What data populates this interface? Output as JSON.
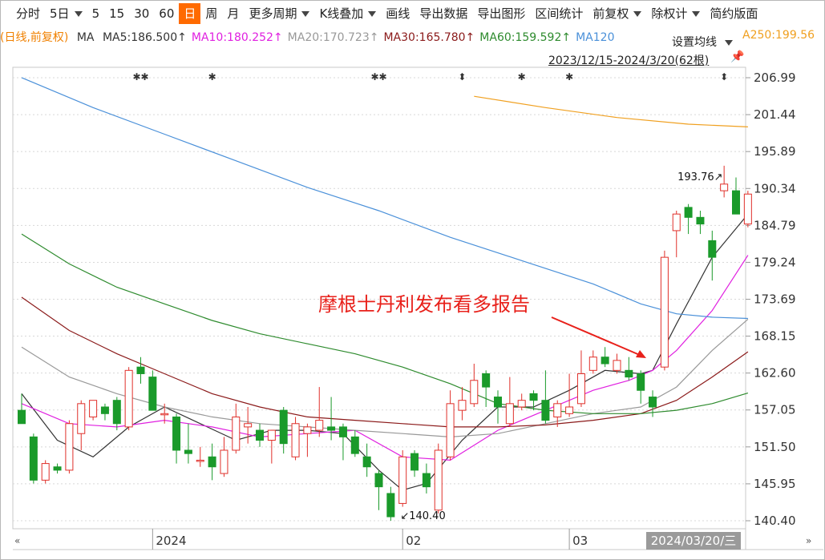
{
  "toolbar": {
    "items": [
      "分时",
      "5日",
      "5",
      "15",
      "30",
      "60",
      "日",
      "周",
      "月",
      "更多周期",
      "K线叠加",
      "画线",
      "导出数据",
      "导出图形",
      "区间统计",
      "前复权",
      "除权计",
      "简约版面"
    ],
    "active_item": "日"
  },
  "ma_line": {
    "prefix": "(日线,前复权)",
    "ma_label": "MA",
    "entries": [
      {
        "text": "MA5:186.500↑",
        "color": "#333333"
      },
      {
        "text": "MA10:180.252↑",
        "color": "#e020e0"
      },
      {
        "text": "MA20:170.723↑",
        "color": "#999999"
      },
      {
        "text": "MA30:165.780↑",
        "color": "#8b1a1a"
      },
      {
        "text": "MA60:159.592↑",
        "color": "#2e8b2e"
      },
      {
        "text": "MA120",
        "color": "#4a90d9"
      },
      {
        "text": "A250:199.56",
        "color": "#f0a020"
      }
    ],
    "prefix_color": "#f08000",
    "set_ma_label": "设置均线"
  },
  "date_range": "2023/12/15-2024/3/20(62根)",
  "crosshair_date": "2024/03/20/三",
  "scroll_left_icon": "double-left-arrow-icon",
  "scroll_right_icon": "double-right-arrow-icon",
  "colors": {
    "up": "#e0302a",
    "down": "#1a9a2a",
    "annotation": "#e8201a"
  },
  "chart_data": {
    "type": "candlestick",
    "ylim": [
      138.5,
      210.0
    ],
    "y_ticks": [
      206.99,
      201.44,
      195.89,
      190.34,
      184.79,
      179.24,
      173.69,
      168.15,
      162.6,
      157.05,
      151.5,
      145.95,
      140.4
    ],
    "x_tick_labels": [
      {
        "index": 11,
        "label": "2024"
      },
      {
        "index": 32,
        "label": "02"
      },
      {
        "index": 46,
        "label": "03"
      }
    ],
    "candles": [
      {
        "o": 157.0,
        "h": 159.5,
        "l": 155.0,
        "c": 155.0
      },
      {
        "o": 153.0,
        "h": 153.5,
        "l": 146.0,
        "c": 146.5
      },
      {
        "o": 146.5,
        "h": 149.5,
        "l": 146.0,
        "c": 149.0
      },
      {
        "o": 148.5,
        "h": 149.0,
        "l": 147.5,
        "c": 148.0
      },
      {
        "o": 148.0,
        "h": 155.5,
        "l": 147.5,
        "c": 155.0
      },
      {
        "o": 153.5,
        "h": 158.5,
        "l": 151.0,
        "c": 158.0
      },
      {
        "o": 156.0,
        "h": 158.5,
        "l": 155.5,
        "c": 158.5
      },
      {
        "o": 157.5,
        "h": 158.0,
        "l": 155.5,
        "c": 156.5
      },
      {
        "o": 158.5,
        "h": 159.0,
        "l": 154.0,
        "c": 155.0
      },
      {
        "o": 154.5,
        "h": 163.5,
        "l": 154.0,
        "c": 163.0
      },
      {
        "o": 163.5,
        "h": 165.0,
        "l": 161.0,
        "c": 162.5
      },
      {
        "o": 162.0,
        "h": 163.0,
        "l": 157.0,
        "c": 157.0
      },
      {
        "o": 156.5,
        "h": 158.0,
        "l": 155.0,
        "c": 156.5
      },
      {
        "o": 156.0,
        "h": 156.5,
        "l": 149.0,
        "c": 151.0
      },
      {
        "o": 151.0,
        "h": 155.0,
        "l": 149.0,
        "c": 150.5
      },
      {
        "o": 149.5,
        "h": 151.5,
        "l": 148.5,
        "c": 149.5
      },
      {
        "o": 150.0,
        "h": 152.0,
        "l": 146.5,
        "c": 148.5
      },
      {
        "o": 147.5,
        "h": 153.0,
        "l": 147.0,
        "c": 151.0
      },
      {
        "o": 151.0,
        "h": 158.0,
        "l": 150.5,
        "c": 156.0
      },
      {
        "o": 154.5,
        "h": 157.5,
        "l": 152.0,
        "c": 155.0
      },
      {
        "o": 154.0,
        "h": 155.0,
        "l": 151.5,
        "c": 152.5
      },
      {
        "o": 152.5,
        "h": 154.0,
        "l": 149.0,
        "c": 154.0
      },
      {
        "o": 157.0,
        "h": 157.5,
        "l": 150.5,
        "c": 152.0
      },
      {
        "o": 150.0,
        "h": 156.0,
        "l": 149.5,
        "c": 155.0
      },
      {
        "o": 153.5,
        "h": 155.0,
        "l": 150.0,
        "c": 154.5
      },
      {
        "o": 154.0,
        "h": 160.5,
        "l": 153.0,
        "c": 155.5
      },
      {
        "o": 154.5,
        "h": 159.0,
        "l": 152.5,
        "c": 154.0
      },
      {
        "o": 154.5,
        "h": 155.0,
        "l": 149.5,
        "c": 153.0
      },
      {
        "o": 153.0,
        "h": 154.0,
        "l": 150.0,
        "c": 150.5
      },
      {
        "o": 150.0,
        "h": 152.0,
        "l": 147.0,
        "c": 148.5
      },
      {
        "o": 147.5,
        "h": 148.0,
        "l": 142.0,
        "c": 145.5
      },
      {
        "o": 144.5,
        "h": 145.5,
        "l": 140.4,
        "c": 141.0
      },
      {
        "o": 143.0,
        "h": 151.0,
        "l": 142.5,
        "c": 150.0
      },
      {
        "o": 150.5,
        "h": 151.0,
        "l": 147.0,
        "c": 148.0
      },
      {
        "o": 147.5,
        "h": 149.0,
        "l": 144.5,
        "c": 145.5
      },
      {
        "o": 142.0,
        "h": 152.0,
        "l": 141.5,
        "c": 151.0
      },
      {
        "o": 150.0,
        "h": 160.0,
        "l": 149.5,
        "c": 158.0
      },
      {
        "o": 157.0,
        "h": 160.5,
        "l": 155.5,
        "c": 158.5
      },
      {
        "o": 158.0,
        "h": 164.0,
        "l": 157.5,
        "c": 161.5
      },
      {
        "o": 162.5,
        "h": 163.0,
        "l": 157.5,
        "c": 160.5
      },
      {
        "o": 159.0,
        "h": 160.0,
        "l": 155.0,
        "c": 157.5
      },
      {
        "o": 155.0,
        "h": 162.0,
        "l": 154.5,
        "c": 158.0
      },
      {
        "o": 157.5,
        "h": 159.5,
        "l": 157.0,
        "c": 158.5
      },
      {
        "o": 159.5,
        "h": 160.0,
        "l": 157.0,
        "c": 158.5
      },
      {
        "o": 158.5,
        "h": 163.0,
        "l": 155.0,
        "c": 155.5
      },
      {
        "o": 156.0,
        "h": 158.5,
        "l": 154.5,
        "c": 158.0
      },
      {
        "o": 156.5,
        "h": 162.5,
        "l": 156.0,
        "c": 157.5
      },
      {
        "o": 158.0,
        "h": 166.0,
        "l": 157.5,
        "c": 162.5
      },
      {
        "o": 163.0,
        "h": 166.0,
        "l": 162.5,
        "c": 165.0
      },
      {
        "o": 165.0,
        "h": 166.5,
        "l": 163.5,
        "c": 164.0
      },
      {
        "o": 163.0,
        "h": 165.5,
        "l": 162.5,
        "c": 164.5
      },
      {
        "o": 163.0,
        "h": 165.0,
        "l": 161.5,
        "c": 162.0
      },
      {
        "o": 162.5,
        "h": 163.0,
        "l": 158.0,
        "c": 160.0
      },
      {
        "o": 159.0,
        "h": 160.0,
        "l": 156.0,
        "c": 157.5
      },
      {
        "o": 163.5,
        "h": 181.0,
        "l": 163.0,
        "c": 180.0
      },
      {
        "o": 184.0,
        "h": 187.0,
        "l": 180.0,
        "c": 186.5
      },
      {
        "o": 187.5,
        "h": 188.0,
        "l": 183.5,
        "c": 186.0
      },
      {
        "o": 186.0,
        "h": 187.0,
        "l": 183.5,
        "c": 185.0
      },
      {
        "o": 182.5,
        "h": 184.0,
        "l": 176.5,
        "c": 180.0
      },
      {
        "o": 190.0,
        "h": 193.76,
        "l": 189.0,
        "c": 191.0
      },
      {
        "o": 190.0,
        "h": 192.0,
        "l": 186.5,
        "c": 186.5
      },
      {
        "o": 185.0,
        "h": 190.0,
        "l": 184.5,
        "c": 189.5
      }
    ],
    "ma_series": [
      {
        "name": "MA5",
        "color": "#333333",
        "x": [
          0,
          3,
          6,
          9,
          12,
          15,
          18,
          21,
          24,
          27,
          30,
          32,
          34,
          37,
          40,
          43,
          46,
          49,
          52,
          53,
          55,
          58,
          61
        ],
        "values": [
          159.5,
          152.5,
          150.0,
          154.5,
          157.5,
          155.0,
          152.5,
          154.0,
          154.0,
          153.5,
          148.0,
          145.0,
          146.0,
          152.5,
          157.5,
          157.5,
          160.0,
          163.0,
          162.5,
          163.0,
          170.0,
          180.0,
          186.5
        ]
      },
      {
        "name": "MA10",
        "color": "#e020e0",
        "x": [
          0,
          4,
          8,
          12,
          16,
          20,
          24,
          28,
          32,
          36,
          40,
          44,
          48,
          51,
          53,
          55,
          58,
          61
        ],
        "values": [
          158.0,
          155.0,
          154.5,
          155.5,
          154.5,
          153.0,
          153.5,
          154.0,
          150.0,
          149.5,
          154.0,
          157.0,
          160.0,
          161.5,
          163.0,
          166.0,
          172.0,
          180.3
        ]
      },
      {
        "name": "MA20",
        "color": "#999999",
        "x": [
          0,
          4,
          8,
          12,
          16,
          20,
          24,
          28,
          32,
          36,
          40,
          44,
          48,
          52,
          55,
          58,
          61
        ],
        "values": [
          166.5,
          162.0,
          159.5,
          157.5,
          156.0,
          155.0,
          154.5,
          154.0,
          153.5,
          153.0,
          153.5,
          155.0,
          156.5,
          157.5,
          160.5,
          166.0,
          170.7
        ]
      },
      {
        "name": "MA30",
        "color": "#8b1a1a",
        "x": [
          0,
          4,
          8,
          12,
          16,
          20,
          24,
          28,
          32,
          36,
          40,
          44,
          48,
          52,
          55,
          58,
          61
        ],
        "values": [
          174.0,
          169.0,
          165.5,
          162.5,
          159.5,
          157.5,
          156.0,
          155.5,
          155.0,
          154.5,
          154.5,
          154.8,
          155.5,
          156.5,
          158.5,
          162.0,
          165.8
        ]
      },
      {
        "name": "MA60",
        "color": "#2e8b2e",
        "x": [
          0,
          4,
          8,
          12,
          16,
          20,
          24,
          28,
          32,
          36,
          40,
          44,
          48,
          52,
          55,
          58,
          61
        ],
        "values": [
          183.5,
          179.0,
          175.5,
          173.0,
          170.5,
          168.5,
          167.0,
          165.5,
          163.5,
          161.0,
          158.0,
          157.0,
          156.5,
          156.5,
          157.0,
          158.0,
          159.6
        ]
      },
      {
        "name": "MA120",
        "color": "#4a90d9",
        "x": [
          0,
          6,
          12,
          18,
          24,
          30,
          36,
          42,
          48,
          52,
          55,
          58,
          61
        ],
        "values": [
          207.0,
          202.5,
          198.5,
          194.5,
          190.5,
          187.0,
          183.0,
          179.5,
          176.0,
          173.0,
          171.5,
          171.0,
          170.8
        ]
      },
      {
        "name": "A250",
        "color": "#f0a020",
        "x": [
          38,
          44,
          50,
          56,
          61
        ],
        "values": [
          204.2,
          202.5,
          201.0,
          200.0,
          199.6
        ]
      }
    ],
    "annotations": [
      {
        "text": "摩根士丹利发布看多报告",
        "color": "#e8201a"
      },
      {
        "text": "193.76",
        "type": "high-marker",
        "index": 59
      },
      {
        "text": "140.40",
        "type": "low-marker",
        "index": 31
      }
    ],
    "event_markers": [
      {
        "symbol": "✱✱",
        "index": 10
      },
      {
        "symbol": "✱",
        "index": 16
      },
      {
        "symbol": "✱✱",
        "index": 30
      },
      {
        "symbol": "⬍",
        "index": 37
      },
      {
        "symbol": "✱",
        "index": 42
      },
      {
        "symbol": "✱",
        "index": 46
      },
      {
        "symbol": "⬍",
        "index": 59
      }
    ]
  }
}
